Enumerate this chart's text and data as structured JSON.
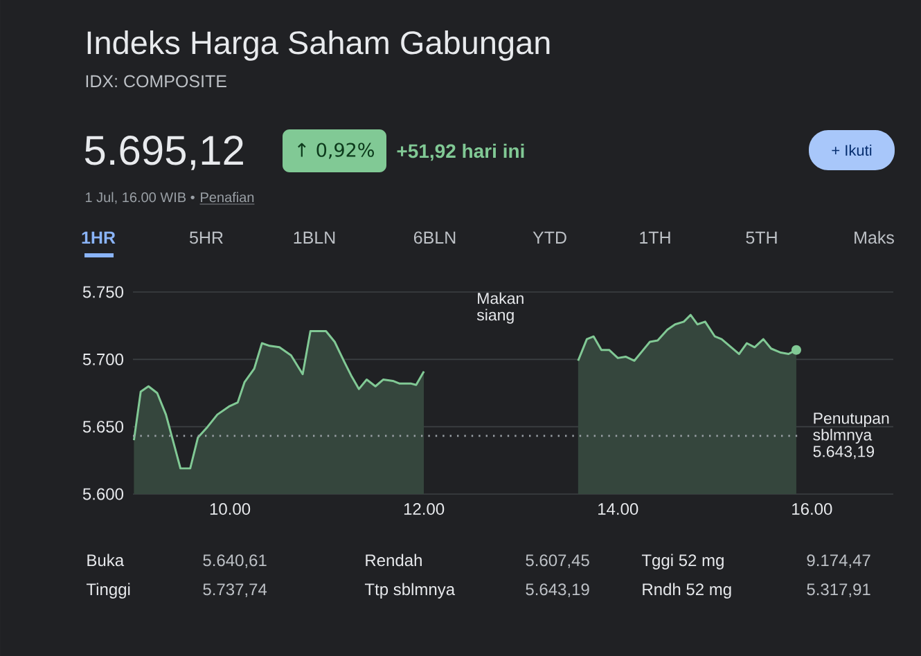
{
  "chart_data": {
    "type": "area",
    "title": "Indeks Harga Saham Gabungan",
    "subtitle": "IDX: COMPOSITE",
    "series": [
      {
        "color": "#81c995",
        "x": [
          9.01,
          9.08,
          9.16,
          9.25,
          9.34,
          9.49,
          9.59,
          9.67,
          9.77,
          9.87,
          9.99,
          10.08,
          10.15,
          10.25,
          10.33,
          10.41,
          10.51,
          10.63,
          10.75,
          10.83,
          10.99,
          11.08,
          11.18,
          11.25,
          11.33,
          11.41,
          11.5,
          11.58,
          11.68,
          11.75,
          11.87,
          11.92,
          12.0
        ],
        "values": [
          5640,
          5676,
          5680,
          5675,
          5659,
          5619,
          5619,
          5642,
          5650,
          5659,
          5665,
          5668,
          5683,
          5693,
          5712,
          5710,
          5709,
          5703,
          5689,
          5721,
          5721,
          5713,
          5698,
          5688,
          5678,
          5685,
          5680,
          5685,
          5684,
          5682,
          5682,
          5681,
          5691
        ]
      },
      {
        "color": "#81c995",
        "x": [
          13.59,
          13.68,
          13.75,
          13.83,
          13.91,
          14.0,
          14.08,
          14.17,
          14.25,
          14.33,
          14.41,
          14.51,
          14.59,
          14.68,
          14.75,
          14.82,
          14.9,
          15.0,
          15.07,
          15.25,
          15.33,
          15.41,
          15.5,
          15.58,
          15.68,
          15.76,
          15.84
        ],
        "values": [
          5699,
          5715,
          5717,
          5707,
          5707,
          5701,
          5702,
          5699,
          5706,
          5713,
          5714,
          5722,
          5726,
          5728,
          5733,
          5726,
          5728,
          5717,
          5715,
          5704,
          5712,
          5709,
          5715,
          5708,
          5705,
          5704,
          5707
        ]
      }
    ],
    "xlim": [
      9.0,
      16.84
    ],
    "xticks": [
      {
        "value": 10,
        "label": "10.00"
      },
      {
        "value": 12,
        "label": "12.00"
      },
      {
        "value": 14,
        "label": "14.00"
      },
      {
        "value": 16,
        "label": "16.00"
      }
    ],
    "ylim": [
      5600,
      5750
    ],
    "yticks": [
      {
        "value": 5600,
        "label": "5.600"
      },
      {
        "value": 5650,
        "label": "5.650"
      },
      {
        "value": 5700,
        "label": "5.700"
      },
      {
        "value": 5750,
        "label": "5.750"
      }
    ],
    "grid": "y",
    "ref_lines": [
      {
        "axis": "y",
        "value": 5643.19,
        "label": "Penutupan sblmnya 5.643,19",
        "line_style": "dotted"
      }
    ],
    "annotations": [
      "5.695,12",
      "↑ 0,92%",
      "+51,92 hari ini",
      "+ Ikuti",
      "1 Jul, 16.00 WIB •",
      "Penafian",
      "1HR",
      "5HR",
      "1BLN",
      "6BLN",
      "YTD",
      "1TH",
      "5TH",
      "Maks",
      "Buka",
      "5.640,61",
      "Rendah",
      "5.607,45",
      "Tggi 52 mg",
      "9.174,47",
      "Tinggi",
      "5.737,74",
      "Ttp sblmnya",
      "5.643,19",
      "Rndh 52 mg",
      "5.317,91",
      "Makan siang"
    ]
  }
}
